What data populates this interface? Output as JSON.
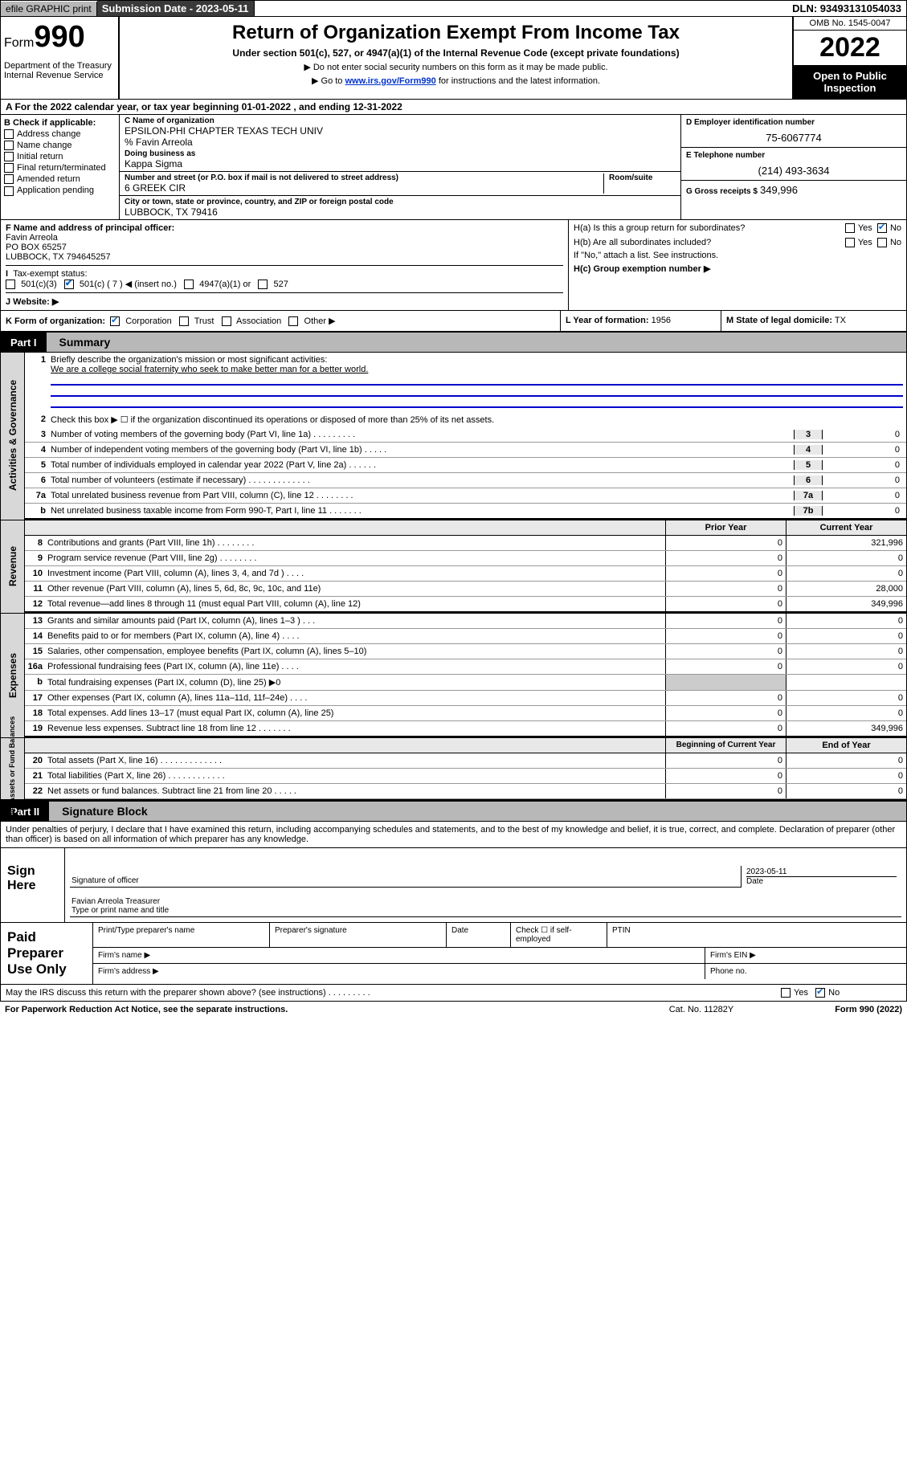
{
  "topbar": {
    "efile": "efile GRAPHIC print",
    "submission_label": "Submission Date - 2023-05-11",
    "dln": "DLN: 93493131054033"
  },
  "header": {
    "form_prefix": "Form",
    "form_num": "990",
    "dept": "Department of the Treasury\nInternal Revenue Service",
    "title": "Return of Organization Exempt From Income Tax",
    "sub": "Under section 501(c), 527, or 4947(a)(1) of the Internal Revenue Code (except private foundations)",
    "note1": "▶ Do not enter social security numbers on this form as it may be made public.",
    "note2_pre": "▶ Go to ",
    "note2_link": "www.irs.gov/Form990",
    "note2_post": " for instructions and the latest information.",
    "omb": "OMB No. 1545-0047",
    "year": "2022",
    "open": "Open to Public Inspection"
  },
  "row_a": {
    "text": "A For the 2022 calendar year, or tax year beginning 01-01-2022    , and ending 12-31-2022"
  },
  "col_b": {
    "label": "B Check if applicable:",
    "items": [
      "Address change",
      "Name change",
      "Initial return",
      "Final return/terminated",
      "Amended return",
      "Application pending"
    ]
  },
  "col_c": {
    "name_lbl": "C Name of organization",
    "name": "EPSILON-PHI CHAPTER TEXAS TECH UNIV",
    "care_of": "% Favin Arreola",
    "dba_lbl": "Doing business as",
    "dba": "Kappa Sigma",
    "addr_lbl": "Number and street (or P.O. box if mail is not delivered to street address)",
    "addr": "6 GREEK CIR",
    "room_lbl": "Room/suite",
    "city_lbl": "City or town, state or province, country, and ZIP or foreign postal code",
    "city": "LUBBOCK, TX  79416"
  },
  "col_d": {
    "ein_lbl": "D Employer identification number",
    "ein": "75-6067774",
    "phone_lbl": "E Telephone number",
    "phone": "(214) 493-3634",
    "gross_lbl": "G Gross receipts $",
    "gross": "349,996"
  },
  "f": {
    "lbl": "F Name and address of principal officer:",
    "name": "Favin Arreola",
    "addr1": "PO BOX 65257",
    "addr2": "LUBBOCK, TX  794645257"
  },
  "h": {
    "a": "H(a)  Is this a group return for subordinates?",
    "a_yes": "Yes",
    "a_no": "No",
    "b": "H(b)  Are all subordinates included?",
    "b_yes": "Yes",
    "b_no": "No",
    "b_note": "If \"No,\" attach a list. See instructions.",
    "c": "H(c)  Group exemption number ▶"
  },
  "i": {
    "lbl": "Tax-exempt status:",
    "opts": [
      "501(c)(3)",
      "501(c) ( 7 ) ◀ (insert no.)",
      "4947(a)(1) or",
      "527"
    ]
  },
  "j": {
    "lbl": "J   Website: ▶"
  },
  "k": {
    "lbl": "K Form of organization:",
    "opts": [
      "Corporation",
      "Trust",
      "Association",
      "Other ▶"
    ]
  },
  "l": {
    "lbl": "L Year of formation:",
    "val": "1956"
  },
  "m": {
    "lbl": "M State of legal domicile:",
    "val": "TX"
  },
  "part1": {
    "tab": "Part I",
    "title": "Summary"
  },
  "vtabs": {
    "gov": "Activities & Governance",
    "rev": "Revenue",
    "exp": "Expenses",
    "net": "Net Assets or Fund Balances"
  },
  "gov_lines": {
    "l1": "Briefly describe the organization's mission or most significant activities:",
    "l1_mission": "We are a college social fraternity who seek to make better man for a better world.",
    "l2": "Check this box ▶ ☐  if the organization discontinued its operations or disposed of more than 25% of its net assets.",
    "l3": "Number of voting members of the governing body (Part VI, line 1a)   .    .    .    .    .    .    .    .    .",
    "l4": "Number of independent voting members of the governing body (Part VI, line 1b)   .    .    .    .    .",
    "l5": "Total number of individuals employed in calendar year 2022 (Part V, line 2a)   .    .    .    .    .    .",
    "l6": "Total number of volunteers (estimate if necessary)   .    .    .    .    .    .    .    .    .    .    .    .    .",
    "l7a": "Total unrelated business revenue from Part VIII, column (C), line 12   .    .    .    .    .    .    .    .",
    "l7b": "Net unrelated business taxable income from Form 990-T, Part I, line 11   .    .    .    .    .    .    .",
    "vals": {
      "3": "0",
      "4": "0",
      "5": "0",
      "6": "0",
      "7a": "0",
      "7b": "0"
    }
  },
  "fin_hdr": {
    "prior": "Prior Year",
    "current": "Current Year"
  },
  "fin_hdr2": {
    "begin": "Beginning of Current Year",
    "end": "End of Year"
  },
  "rev_lines": [
    {
      "n": "8",
      "t": "Contributions and grants (Part VIII, line 1h)   .    .    .    .    .    .    .    .",
      "p": "0",
      "c": "321,996"
    },
    {
      "n": "9",
      "t": "Program service revenue (Part VIII, line 2g)    .    .    .    .    .    .    .    .",
      "p": "0",
      "c": "0"
    },
    {
      "n": "10",
      "t": "Investment income (Part VIII, column (A), lines 3, 4, and 7d )   .    .    .    .",
      "p": "0",
      "c": "0"
    },
    {
      "n": "11",
      "t": "Other revenue (Part VIII, column (A), lines 5, 6d, 8c, 9c, 10c, and 11e)",
      "p": "0",
      "c": "28,000"
    },
    {
      "n": "12",
      "t": "Total revenue—add lines 8 through 11 (must equal Part VIII, column (A), line 12)",
      "p": "0",
      "c": "349,996"
    }
  ],
  "exp_lines": [
    {
      "n": "13",
      "t": "Grants and similar amounts paid (Part IX, column (A), lines 1–3 )   .    .    .",
      "p": "0",
      "c": "0"
    },
    {
      "n": "14",
      "t": "Benefits paid to or for members (Part IX, column (A), line 4)   .    .    .    .",
      "p": "0",
      "c": "0"
    },
    {
      "n": "15",
      "t": "Salaries, other compensation, employee benefits (Part IX, column (A), lines 5–10)",
      "p": "0",
      "c": "0"
    },
    {
      "n": "16a",
      "t": "Professional fundraising fees (Part IX, column (A), line 11e)   .    .    .    .",
      "p": "0",
      "c": "0"
    },
    {
      "n": "b",
      "t": "Total fundraising expenses (Part IX, column (D), line 25) ▶0",
      "p": "",
      "c": "",
      "shade": true
    },
    {
      "n": "17",
      "t": "Other expenses (Part IX, column (A), lines 11a–11d, 11f–24e)   .    .    .    .",
      "p": "0",
      "c": "0"
    },
    {
      "n": "18",
      "t": "Total expenses. Add lines 13–17 (must equal Part IX, column (A), line 25)",
      "p": "0",
      "c": "0"
    },
    {
      "n": "19",
      "t": "Revenue less expenses. Subtract line 18 from line 12   .    .    .    .    .    .    .",
      "p": "0",
      "c": "349,996"
    }
  ],
  "net_lines": [
    {
      "n": "20",
      "t": "Total assets (Part X, line 16)   .    .    .    .    .    .    .    .    .    .    .    .    .",
      "p": "0",
      "c": "0"
    },
    {
      "n": "21",
      "t": "Total liabilities (Part X, line 26)   .    .    .    .    .    .    .    .    .    .    .    .",
      "p": "0",
      "c": "0"
    },
    {
      "n": "22",
      "t": "Net assets or fund balances. Subtract line 21 from line 20   .    .    .    .    .",
      "p": "0",
      "c": "0"
    }
  ],
  "part2": {
    "tab": "Part II",
    "title": "Signature Block"
  },
  "sig_intro": "Under penalties of perjury, I declare that I have examined this return, including accompanying schedules and statements, and to the best of my knowledge and belief, it is true, correct, and complete. Declaration of preparer (other than officer) is based on all information of which preparer has any knowledge.",
  "sign": {
    "here": "Sign Here",
    "sig_officer": "Signature of officer",
    "date": "2023-05-11",
    "date_lbl": "Date",
    "name": "Favian Arreola  Treasurer",
    "name_lbl": "Type or print name and title"
  },
  "prep": {
    "here": "Paid Preparer Use Only",
    "c1": "Print/Type preparer's name",
    "c2": "Preparer's signature",
    "c3": "Date",
    "c4_pre": "Check ☐ if self-employed",
    "c5": "PTIN",
    "firm_name": "Firm's name   ▶",
    "firm_ein": "Firm's EIN ▶",
    "firm_addr": "Firm's address ▶",
    "phone": "Phone no."
  },
  "footer": {
    "discuss": "May the IRS discuss this return with the preparer shown above? (see instructions)   .    .    .    .    .    .    .    .    .",
    "yes": "Yes",
    "no": "No",
    "paperwork": "For Paperwork Reduction Act Notice, see the separate instructions.",
    "cat": "Cat. No. 11282Y",
    "form": "Form 990 (2022)"
  }
}
